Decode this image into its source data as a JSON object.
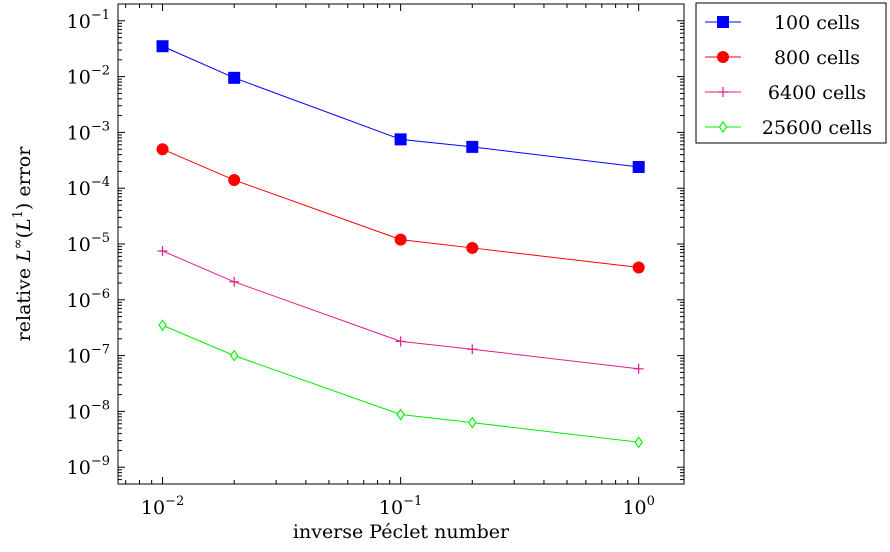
{
  "chart_data": {
    "type": "line",
    "xscale": "log",
    "yscale": "log",
    "xlim": [
      0.0065,
      1.55
    ],
    "ylim": [
      5e-10,
      0.2
    ],
    "xlabel": "inverse Péclet number",
    "ylabel_parts": {
      "pre": "relative ",
      "L": "L",
      "sup1": "∞",
      "mid": "(",
      "L2": "L",
      "sup2": "1",
      "post": ") error"
    },
    "xticks": [
      {
        "value": 0.01,
        "base": "10",
        "exp": "−2"
      },
      {
        "value": 0.1,
        "base": "10",
        "exp": "−1"
      },
      {
        "value": 1,
        "base": "10",
        "exp": "0"
      }
    ],
    "yticks": [
      {
        "value": 1e-09,
        "base": "10",
        "exp": "−9"
      },
      {
        "value": 1e-08,
        "base": "10",
        "exp": "−8"
      },
      {
        "value": 1e-07,
        "base": "10",
        "exp": "−7"
      },
      {
        "value": 1e-06,
        "base": "10",
        "exp": "−6"
      },
      {
        "value": 1e-05,
        "base": "10",
        "exp": "−5"
      },
      {
        "value": 0.0001,
        "base": "10",
        "exp": "−4"
      },
      {
        "value": 0.001,
        "base": "10",
        "exp": "−3"
      },
      {
        "value": 0.01,
        "base": "10",
        "exp": "−2"
      },
      {
        "value": 0.1,
        "base": "10",
        "exp": "−1"
      }
    ],
    "grid": false,
    "legend_position": "outside-top-right",
    "x": [
      0.01,
      0.02,
      0.1,
      0.2,
      1
    ],
    "series": [
      {
        "name": "100 cells",
        "color": "#0000ff",
        "marker": "square",
        "values": [
          0.035,
          0.0095,
          0.00075,
          0.00055,
          0.00024
        ]
      },
      {
        "name": "800 cells",
        "color": "#ff0000",
        "marker": "circle",
        "values": [
          0.0005,
          0.00014,
          1.2e-05,
          8.5e-06,
          3.8e-06
        ]
      },
      {
        "name": "6400 cells",
        "color": "#e01f8c",
        "marker": "plus",
        "values": [
          7.5e-06,
          2.1e-06,
          1.8e-07,
          1.3e-07,
          5.8e-08
        ]
      },
      {
        "name": "25600 cells",
        "color": "#00ee00",
        "marker": "diamond",
        "values": [
          3.5e-07,
          1e-07,
          8.8e-09,
          6.3e-09,
          2.8e-09
        ]
      }
    ]
  }
}
